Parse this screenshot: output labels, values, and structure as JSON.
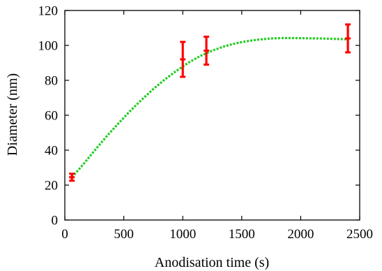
{
  "chart_data": {
    "type": "scatter",
    "xlabel": "Anodisation time (s)",
    "ylabel": "Diameter (nm)",
    "xlim": [
      0,
      2500
    ],
    "ylim": [
      0,
      120
    ],
    "xticks": [
      0,
      500,
      1000,
      1500,
      2000,
      2500
    ],
    "yticks": [
      0,
      20,
      40,
      60,
      80,
      100,
      120
    ],
    "grid": false,
    "series": [
      {
        "kind": "points-with-error-bars",
        "color": "#ff0000",
        "points": [
          {
            "x": 60,
            "y": 24.5,
            "err": 2
          },
          {
            "x": 1000,
            "y": 92,
            "err": 10
          },
          {
            "x": 1200,
            "y": 97,
            "err": 8
          },
          {
            "x": 2400,
            "y": 104,
            "err": 8
          }
        ]
      },
      {
        "kind": "fit-curve",
        "color": "#22cc22",
        "style": "dotted",
        "x": [
          60,
          150,
          250,
          350,
          450,
          550,
          650,
          750,
          850,
          950,
          1050,
          1150,
          1250,
          1350,
          1450,
          1550,
          1650,
          1750,
          1850,
          1950,
          2050,
          2150,
          2250,
          2350,
          2400
        ],
        "y": [
          24.5,
          31.4,
          39.6,
          47.6,
          55.0,
          62.2,
          68.8,
          75.0,
          80.6,
          85.6,
          90.2,
          94.0,
          97.0,
          99.4,
          101.2,
          102.5,
          103.4,
          104.0,
          104.2,
          104.2,
          104.1,
          104.0,
          103.8,
          103.6,
          103.5
        ]
      }
    ]
  }
}
